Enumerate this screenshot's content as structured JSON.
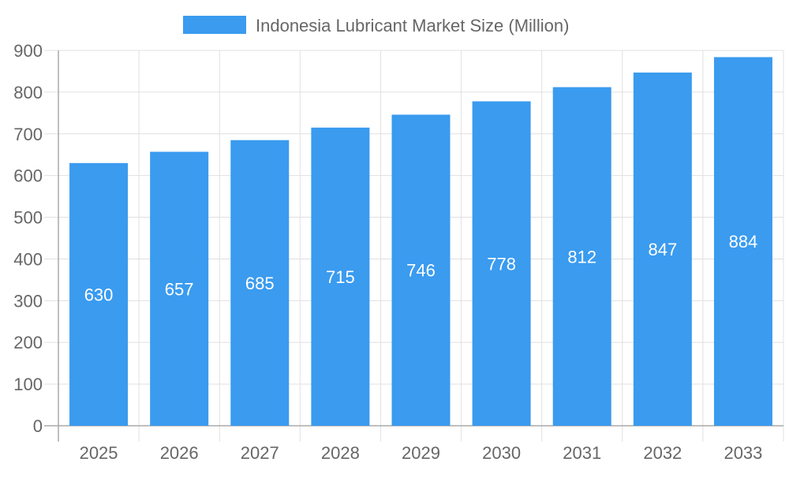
{
  "chart_data": {
    "type": "bar",
    "categories": [
      "2025",
      "2026",
      "2027",
      "2028",
      "2029",
      "2030",
      "2031",
      "2032",
      "2033"
    ],
    "series": [
      {
        "name": "Indonesia Lubricant Market Size (Million)",
        "values": [
          630,
          657,
          685,
          715,
          746,
          778,
          812,
          847,
          884
        ]
      }
    ],
    "y_ticks": [
      "0",
      "100",
      "200",
      "300",
      "400",
      "500",
      "600",
      "700",
      "800",
      "900"
    ],
    "ylim": [
      0,
      900
    ],
    "grid": true,
    "legend": "top",
    "data_labels": true,
    "colors": {
      "bar": "#3a9bef",
      "text": "#666666",
      "grid": "#e0e0e0",
      "label": "#ffffff"
    }
  }
}
